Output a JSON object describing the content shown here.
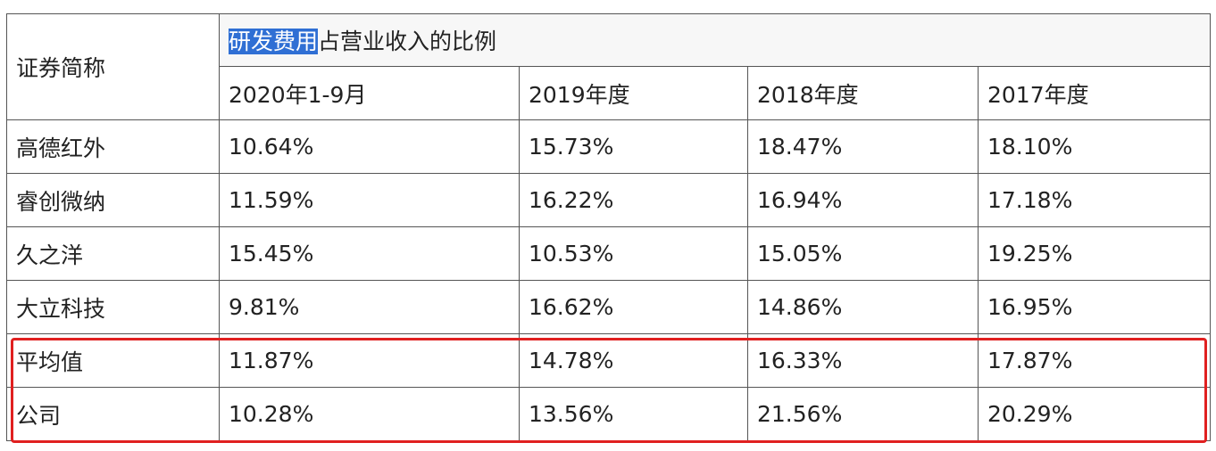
{
  "table": {
    "corner_label": "证券简称",
    "title_selected": "研发费用",
    "title_rest": "占营业收入的比例",
    "periods": [
      "2020年1-9月",
      "2019年度",
      "2018年度",
      "2017年度"
    ],
    "rows": [
      {
        "name": "高德红外",
        "values": [
          "10.64%",
          "15.73%",
          "18.47%",
          "18.10%"
        ]
      },
      {
        "name": "睿创微纳",
        "values": [
          "11.59%",
          "16.22%",
          "16.94%",
          "17.18%"
        ]
      },
      {
        "name": "久之洋",
        "values": [
          "15.45%",
          "10.53%",
          "15.05%",
          "19.25%"
        ]
      },
      {
        "name": "大立科技",
        "values": [
          "9.81%",
          "16.62%",
          "14.86%",
          "16.95%"
        ]
      },
      {
        "name": "平均值",
        "values": [
          "11.87%",
          "14.78%",
          "16.33%",
          "17.87%"
        ]
      },
      {
        "name": "公司",
        "values": [
          "10.28%",
          "13.56%",
          "21.56%",
          "20.29%"
        ]
      }
    ]
  },
  "colors": {
    "selection": "#2f6fd4",
    "highlight_box": "#e02020",
    "border": "#555555"
  }
}
